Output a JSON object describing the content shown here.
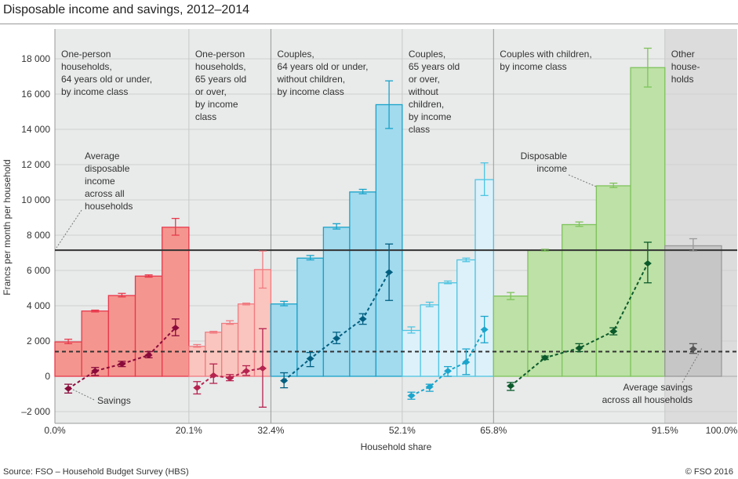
{
  "title": "Disposable income and savings, 2012–2014",
  "source": "Source: FSO – Household Budget Survey (HBS)",
  "copyright": "© FSO 2016",
  "chart_data": {
    "type": "bar",
    "ylabel": "Francs per month per household",
    "xlabel": "Household share",
    "ylim": [
      -2500,
      19500
    ],
    "yticks": [
      -2000,
      0,
      2000,
      4000,
      6000,
      8000,
      10000,
      12000,
      14000,
      16000,
      18000
    ],
    "ytick_labels": [
      "–2 000",
      "0",
      "2 000",
      "4 000",
      "6 000",
      "8 000",
      "10 000",
      "12 000",
      "14 000",
      "16 000",
      "18 000"
    ],
    "xticks": [
      0,
      20.1,
      32.4,
      52.1,
      65.8,
      91.5,
      100
    ],
    "xtick_labels": [
      "0.0%",
      "20.1%",
      "32.4%",
      "52.1%",
      "65.8%",
      "91.5%",
      "100.0%"
    ],
    "grid": true,
    "average_disposable_income": 7150,
    "average_savings": 1400,
    "groups": [
      {
        "label": [
          "One-person",
          "households,",
          "64 years old or under,",
          "by income class"
        ],
        "start": 0,
        "end": 20.1,
        "fill": "#f4968f",
        "stroke": "#e8394c",
        "savings_color": "#8a0b3b",
        "disposable": [
          1950,
          3700,
          4580,
          5680,
          8450
        ],
        "disposable_err": [
          [
            1850,
            2100
          ],
          [
            3650,
            3750
          ],
          [
            4500,
            4700
          ],
          [
            5620,
            5750
          ],
          [
            8000,
            8950
          ]
        ],
        "savings": [
          -700,
          300,
          700,
          1200,
          2750
        ],
        "savings_err": [
          [
            -950,
            -450
          ],
          [
            50,
            500
          ],
          [
            550,
            850
          ],
          [
            1050,
            1400
          ],
          [
            2300,
            3250
          ]
        ]
      },
      {
        "label": [
          "One-person",
          "households,",
          "65 years old",
          "or over,",
          "by income",
          "class"
        ],
        "start": 20.1,
        "end": 32.4,
        "fill": "#fac5be",
        "stroke": "#f07c82",
        "savings_color": "#b5234f",
        "disposable": [
          1700,
          2500,
          3000,
          4100,
          6050
        ],
        "disposable_err": [
          [
            1650,
            1800
          ],
          [
            2450,
            2550
          ],
          [
            2950,
            3150
          ],
          [
            4050,
            4150
          ],
          [
            5000,
            7100
          ]
        ],
        "savings": [
          -650,
          50,
          -100,
          300,
          450
        ],
        "savings_err": [
          [
            -1000,
            -300
          ],
          [
            -400,
            700
          ],
          [
            -250,
            100
          ],
          [
            50,
            600
          ],
          [
            -1750,
            2700
          ]
        ]
      },
      {
        "label": [
          "Couples,",
          "64 years old or under,",
          "without children,",
          "by income class"
        ],
        "start": 32.4,
        "end": 52.1,
        "fill": "#a2daee",
        "stroke": "#19a3c9",
        "savings_color": "#005f80",
        "disposable": [
          4100,
          6700,
          8450,
          10450,
          15400
        ],
        "disposable_err": [
          [
            4000,
            4250
          ],
          [
            6600,
            6850
          ],
          [
            8350,
            8650
          ],
          [
            10350,
            10600
          ],
          [
            14050,
            16750
          ]
        ],
        "savings": [
          -250,
          1000,
          2150,
          3250,
          5900
        ],
        "savings_err": [
          [
            -650,
            200
          ],
          [
            550,
            1350
          ],
          [
            1850,
            2500
          ],
          [
            2950,
            3550
          ],
          [
            4300,
            7500
          ]
        ]
      },
      {
        "label": [
          "Couples,",
          "65 years old",
          "or over,",
          "without",
          "children,",
          "by income",
          "class"
        ],
        "start": 52.1,
        "end": 65.8,
        "fill": "#ddf1fa",
        "stroke": "#4ec5e2",
        "savings_color": "#1aa5cc",
        "disposable": [
          2600,
          4050,
          5300,
          6600,
          11150
        ],
        "disposable_err": [
          [
            2450,
            2800
          ],
          [
            3950,
            4200
          ],
          [
            5250,
            5400
          ],
          [
            6500,
            6700
          ],
          [
            10250,
            12100
          ]
        ],
        "savings": [
          -1100,
          -600,
          300,
          800,
          2650
        ],
        "savings_err": [
          [
            -1300,
            -900
          ],
          [
            -850,
            -450
          ],
          [
            0,
            550
          ],
          [
            100,
            1550
          ],
          [
            1900,
            3400
          ]
        ]
      },
      {
        "label": [
          "Couples with children,",
          "by income class"
        ],
        "start": 65.8,
        "end": 91.5,
        "fill": "#bde1a6",
        "stroke": "#7fc35c",
        "savings_color": "#0b5a2b",
        "disposable": [
          4550,
          7150,
          8600,
          10800,
          17500
        ],
        "disposable_err": [
          [
            4350,
            4750
          ],
          [
            7100,
            7200
          ],
          [
            8500,
            8750
          ],
          [
            10700,
            10950
          ],
          [
            16400,
            18600
          ]
        ],
        "savings": [
          -550,
          1050,
          1600,
          2550,
          6400
        ],
        "savings_err": [
          [
            -800,
            -350
          ],
          [
            950,
            1150
          ],
          [
            1400,
            1850
          ],
          [
            2350,
            2750
          ],
          [
            5300,
            7600
          ]
        ]
      },
      {
        "label": [
          "Other",
          "house-",
          "holds"
        ],
        "start": 91.5,
        "end": 100,
        "fill": "#c6c6c6",
        "stroke": "#9a9a9a",
        "savings_color": "#555555",
        "disposable": [
          7400
        ],
        "disposable_err": [
          [
            7100,
            7800
          ]
        ],
        "savings": [
          1550
        ],
        "savings_err": [
          [
            1300,
            1850
          ]
        ]
      }
    ],
    "annotations": {
      "avg_income": [
        "Average",
        "disposable",
        "income",
        "across all",
        "households"
      ],
      "savings": "Savings",
      "disposable": [
        "Disposable",
        "income"
      ],
      "avg_savings": [
        "Average savings",
        "across all households"
      ]
    }
  }
}
